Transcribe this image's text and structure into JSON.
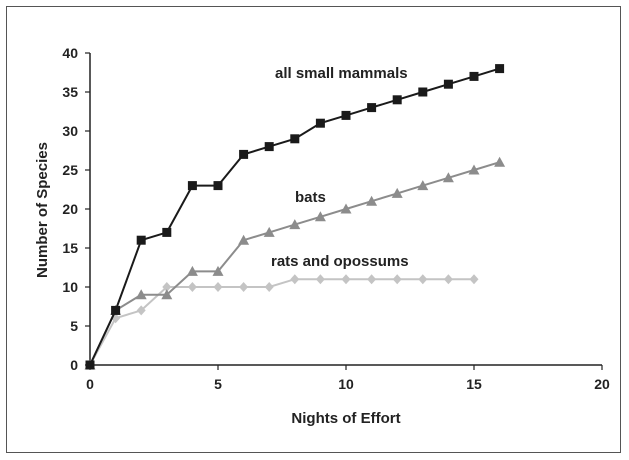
{
  "chart_data": {
    "type": "line",
    "xlabel": "Nights of Effort",
    "ylabel": "Number of Species",
    "xlim": [
      0,
      20
    ],
    "ylim": [
      0,
      40
    ],
    "xticks": [
      0,
      5,
      10,
      15,
      20
    ],
    "yticks": [
      0,
      5,
      10,
      15,
      20,
      25,
      30,
      35,
      40
    ],
    "grid": false,
    "legend": "inline labels",
    "series": [
      {
        "name": "all small mammals",
        "color": "#1a1a1a",
        "marker": "square",
        "x": [
          0,
          1,
          2,
          3,
          4,
          5,
          6,
          7,
          8,
          9,
          10,
          11,
          12,
          13,
          14,
          15,
          16
        ],
        "y": [
          0,
          7,
          16,
          17,
          23,
          23,
          27,
          28,
          29,
          31,
          32,
          33,
          34,
          35,
          36,
          37,
          38
        ]
      },
      {
        "name": "bats",
        "color": "#8c8c8c",
        "marker": "triangle",
        "x": [
          0,
          1,
          2,
          3,
          4,
          5,
          6,
          7,
          8,
          9,
          10,
          11,
          12,
          13,
          14,
          15,
          16
        ],
        "y": [
          0,
          7,
          9,
          9,
          12,
          12,
          16,
          17,
          18,
          19,
          20,
          21,
          22,
          23,
          24,
          25,
          26
        ]
      },
      {
        "name": "rats and opossums",
        "color": "#c4c4c4",
        "marker": "diamond",
        "x": [
          0,
          1,
          2,
          3,
          4,
          5,
          6,
          7,
          8,
          9,
          10,
          11,
          12,
          13,
          14,
          15
        ],
        "y": [
          0,
          6,
          7,
          10,
          10,
          10,
          10,
          10,
          11,
          11,
          11,
          11,
          11,
          11,
          11,
          11
        ]
      }
    ]
  }
}
